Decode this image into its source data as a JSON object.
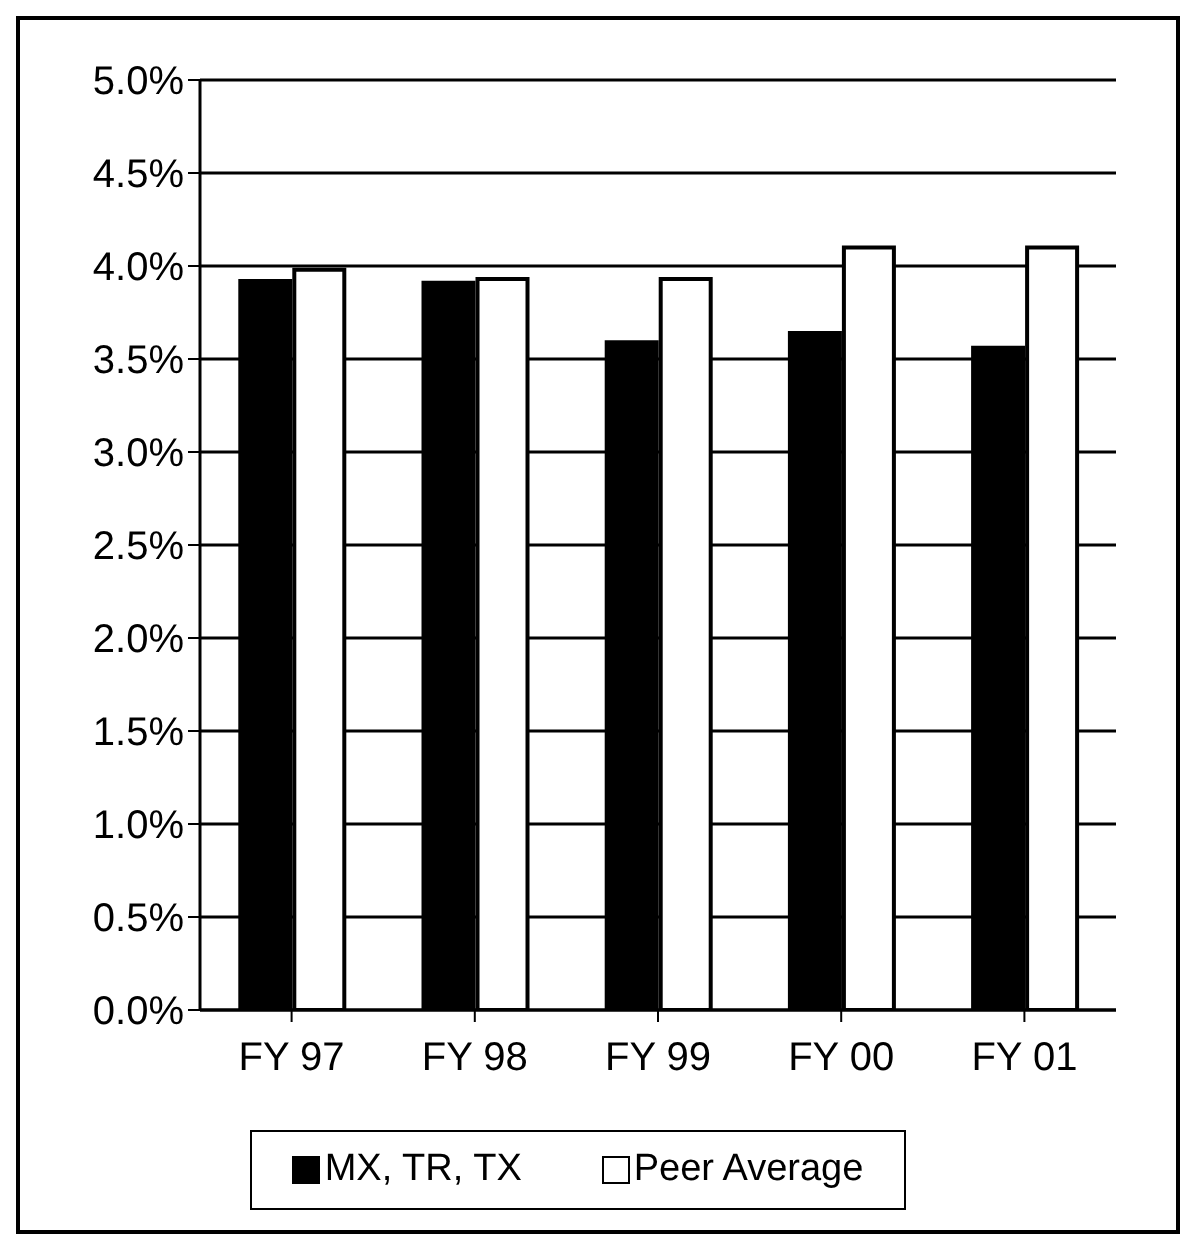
{
  "chart_data": {
    "type": "bar",
    "categories": [
      "FY 97",
      "FY 98",
      "FY 99",
      "FY 00",
      "FY 01"
    ],
    "series": [
      {
        "name": "MX, TR, TX",
        "color": "#000000",
        "values": [
          3.92,
          3.91,
          3.59,
          3.64,
          3.56
        ]
      },
      {
        "name": "Peer Average",
        "color": "#ffffff",
        "values": [
          3.98,
          3.93,
          3.93,
          4.1,
          4.1
        ]
      }
    ],
    "ylim": [
      0,
      5
    ],
    "yticks": [
      {
        "value": 0,
        "label": "0.0%"
      },
      {
        "value": 0.5,
        "label": "0.5%"
      },
      {
        "value": 1,
        "label": "1.0%"
      },
      {
        "value": 1.5,
        "label": "1.5%"
      },
      {
        "value": 2,
        "label": "2.0%"
      },
      {
        "value": 2.5,
        "label": "2.5%"
      },
      {
        "value": 3,
        "label": "3.0%"
      },
      {
        "value": 3.5,
        "label": "3.5%"
      },
      {
        "value": 4,
        "label": "4.0%"
      },
      {
        "value": 4.5,
        "label": "4.5%"
      },
      {
        "value": 5,
        "label": "5.0%"
      }
    ],
    "grid": "y",
    "legend": "bottom"
  }
}
